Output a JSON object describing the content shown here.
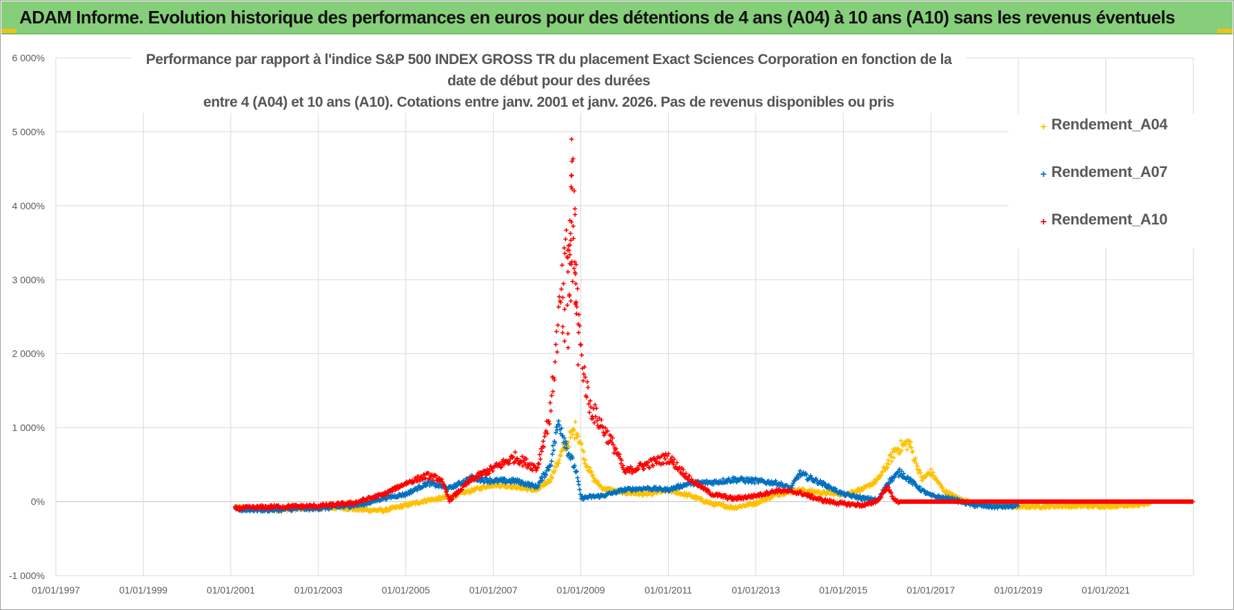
{
  "banner": {
    "title": "ADAM Informe. Evolution historique des performances en euros pour des détentions de 4 ans (A04) à 10 ans (A10) sans les revenus éventuels"
  },
  "colors": {
    "banner": "#86cf7a",
    "A04": "#ffc000",
    "A07": "#0070c0",
    "A10": "#ff0000",
    "grid": "#d9d9d9"
  },
  "chart_data": {
    "type": "scatter",
    "title_lines": [
      "Performance par rapport à l'indice S&P 500 INDEX GROSS TR  du placement Exact Sciences Corporation en fonction de la date de début pour des durées",
      "entre 4 (A04) et 10 ans (A10). Cotations entre janv. 2001 et janv. 2026. Pas de revenus disponibles ou pris"
    ],
    "xlabel": "",
    "ylabel": "",
    "x_range": [
      "01/01/1997",
      "31/12/2022"
    ],
    "x_ticks": [
      "01/01/1997",
      "01/01/1999",
      "01/01/2001",
      "01/01/2003",
      "01/01/2005",
      "01/01/2007",
      "01/01/2009",
      "01/01/2011",
      "01/01/2013",
      "01/01/2015",
      "01/01/2017",
      "01/01/2019",
      "01/01/2021"
    ],
    "ylim": [
      -1000,
      6000
    ],
    "y_ticks": [
      6000,
      5000,
      4000,
      3000,
      2000,
      1000,
      0,
      -1000
    ],
    "y_tick_labels": [
      "6 000%",
      "5 000%",
      "4 000%",
      "3 000%",
      "2 000%",
      "1 000%",
      "0%",
      "-1 000%"
    ],
    "legend_position": "right",
    "series": [
      {
        "name": "Rendement_A04",
        "color": "#ffc000",
        "points": [
          [
            2001.1,
            -80
          ],
          [
            2002.0,
            -110
          ],
          [
            2003.0,
            -90
          ],
          [
            2003.5,
            -85
          ],
          [
            2004.0,
            -110
          ],
          [
            2004.5,
            -120
          ],
          [
            2005.0,
            -50
          ],
          [
            2005.5,
            20
          ],
          [
            2006.0,
            60
          ],
          [
            2006.5,
            150
          ],
          [
            2007.0,
            230
          ],
          [
            2007.5,
            200
          ],
          [
            2008.0,
            150
          ],
          [
            2008.3,
            300
          ],
          [
            2008.6,
            700
          ],
          [
            2008.9,
            1000
          ],
          [
            2009.1,
            550
          ],
          [
            2009.3,
            300
          ],
          [
            2009.5,
            180
          ],
          [
            2010.0,
            120
          ],
          [
            2010.5,
            100
          ],
          [
            2011.0,
            150
          ],
          [
            2011.5,
            80
          ],
          [
            2012.0,
            -30
          ],
          [
            2012.5,
            -80
          ],
          [
            2013.0,
            -20
          ],
          [
            2013.5,
            100
          ],
          [
            2014.0,
            160
          ],
          [
            2014.5,
            120
          ],
          [
            2015.0,
            100
          ],
          [
            2015.5,
            180
          ],
          [
            2015.8,
            300
          ],
          [
            2016.0,
            500
          ],
          [
            2016.2,
            700
          ],
          [
            2016.5,
            800
          ],
          [
            2016.8,
            300
          ],
          [
            2017.0,
            400
          ],
          [
            2017.3,
            150
          ],
          [
            2017.6,
            50
          ],
          [
            2018.0,
            -30
          ],
          [
            2019.0,
            -70
          ],
          [
            2020.0,
            -60
          ],
          [
            2021.0,
            -60
          ],
          [
            2021.8,
            -40
          ],
          [
            2022.0,
            -20
          ]
        ]
      },
      {
        "name": "Rendement_A07",
        "color": "#0070c0",
        "points": [
          [
            2001.1,
            -110
          ],
          [
            2002.0,
            -110
          ],
          [
            2003.0,
            -90
          ],
          [
            2003.5,
            -70
          ],
          [
            2004.0,
            -40
          ],
          [
            2004.5,
            50
          ],
          [
            2005.0,
            100
          ],
          [
            2005.5,
            250
          ],
          [
            2006.0,
            180
          ],
          [
            2006.5,
            320
          ],
          [
            2007.0,
            280
          ],
          [
            2007.5,
            280
          ],
          [
            2008.0,
            200
          ],
          [
            2008.3,
            500
          ],
          [
            2008.5,
            1100
          ],
          [
            2008.7,
            700
          ],
          [
            2008.9,
            400
          ],
          [
            2009.0,
            50
          ],
          [
            2009.5,
            80
          ],
          [
            2010.0,
            160
          ],
          [
            2010.5,
            180
          ],
          [
            2011.0,
            160
          ],
          [
            2011.5,
            250
          ],
          [
            2012.0,
            260
          ],
          [
            2012.5,
            300
          ],
          [
            2013.0,
            280
          ],
          [
            2013.5,
            250
          ],
          [
            2013.8,
            180
          ],
          [
            2014.0,
            380
          ],
          [
            2014.5,
            250
          ],
          [
            2015.0,
            100
          ],
          [
            2015.5,
            40
          ],
          [
            2015.8,
            20
          ],
          [
            2016.0,
            250
          ],
          [
            2016.3,
            400
          ],
          [
            2016.5,
            300
          ],
          [
            2016.8,
            150
          ],
          [
            2017.0,
            80
          ],
          [
            2017.5,
            30
          ],
          [
            2018.0,
            -50
          ],
          [
            2018.5,
            -70
          ],
          [
            2019.0,
            -60
          ]
        ]
      },
      {
        "name": "Rendement_A10",
        "color": "#ff0000",
        "points": [
          [
            2001.1,
            -90
          ],
          [
            2002.0,
            -70
          ],
          [
            2003.0,
            -60
          ],
          [
            2003.8,
            -20
          ],
          [
            2004.5,
            100
          ],
          [
            2005.0,
            250
          ],
          [
            2005.5,
            350
          ],
          [
            2005.8,
            300
          ],
          [
            2006.0,
            20
          ],
          [
            2006.5,
            300
          ],
          [
            2007.0,
            450
          ],
          [
            2007.5,
            600
          ],
          [
            2008.0,
            450
          ],
          [
            2008.3,
            1200
          ],
          [
            2008.5,
            2500
          ],
          [
            2008.7,
            3500
          ],
          [
            2008.9,
            3000
          ],
          [
            2009.0,
            2000
          ],
          [
            2009.2,
            1300
          ],
          [
            2009.5,
            1000
          ],
          [
            2009.8,
            700
          ],
          [
            2010.0,
            400
          ],
          [
            2010.5,
            500
          ],
          [
            2011.0,
            600
          ],
          [
            2011.5,
            300
          ],
          [
            2012.0,
            100
          ],
          [
            2012.5,
            40
          ],
          [
            2013.0,
            80
          ],
          [
            2013.5,
            150
          ],
          [
            2014.0,
            120
          ],
          [
            2014.5,
            20
          ],
          [
            2015.0,
            -30
          ],
          [
            2015.5,
            -50
          ],
          [
            2015.8,
            20
          ],
          [
            2016.0,
            200
          ],
          [
            2016.2,
            0
          ],
          [
            2017.0,
            0
          ],
          [
            2018.0,
            0
          ],
          [
            2019.0,
            0
          ],
          [
            2020.0,
            0
          ],
          [
            2021.0,
            0
          ],
          [
            2022.0,
            0
          ],
          [
            2022.99,
            0
          ]
        ],
        "spike_points": [
          [
            2008.8,
            4900
          ],
          [
            2008.82,
            4600
          ],
          [
            2008.85,
            4200
          ],
          [
            2008.78,
            3800
          ],
          [
            2008.74,
            3300
          ],
          [
            2008.88,
            3100
          ],
          [
            2008.7,
            2800
          ],
          [
            2008.92,
            2700
          ],
          [
            2008.62,
            2600
          ]
        ]
      }
    ]
  },
  "legend": {
    "items": [
      {
        "label": "Rendement_A04",
        "color": "#ffc000"
      },
      {
        "label": "Rendement_A07",
        "color": "#0070c0"
      },
      {
        "label": "Rendement_A10",
        "color": "#ff0000"
      }
    ]
  }
}
